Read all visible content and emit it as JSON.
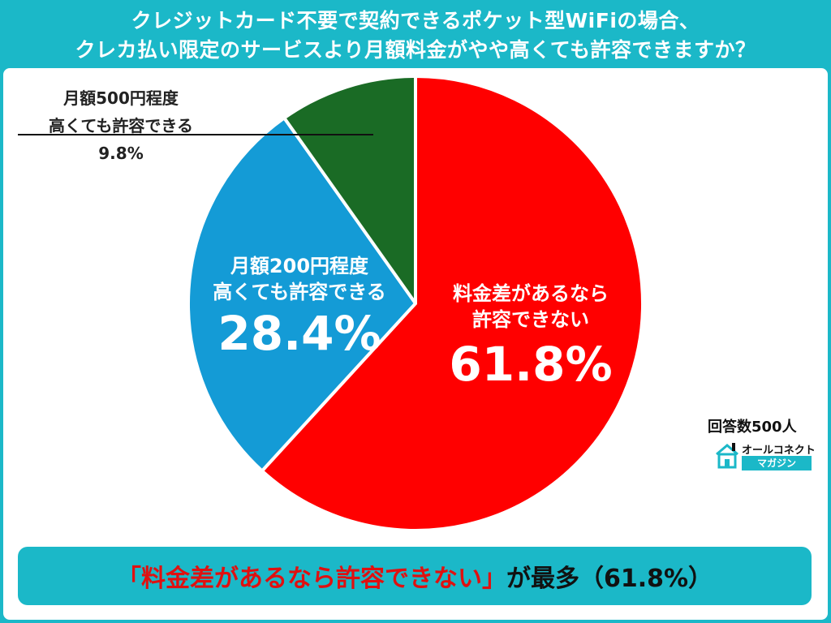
{
  "title": {
    "line1": "クレジットカード不要で契約できるポケット型WiFiの場合、",
    "line2": "クレカ払い限定のサービスより月額料金がやや高くても許容できますか？"
  },
  "chart_data": {
    "type": "pie",
    "start_angle_deg": 0,
    "direction": "clockwise",
    "slices": [
      {
        "label_line1": "料金差があるなら",
        "label_line2": "許容できない",
        "value": 61.8,
        "value_text": "61.8%",
        "color": "#ff0000"
      },
      {
        "label_line1": "月額200円程度",
        "label_line2": "高くても許容できる",
        "value": 28.4,
        "value_text": "28.4%",
        "color": "#149bd6"
      },
      {
        "label_line1": "月額500円程度",
        "label_line2": "高くても許容できる",
        "value": 9.8,
        "value_text": "9.8%",
        "color": "#1a6b25"
      }
    ]
  },
  "note": {
    "respondents": "回答数500人"
  },
  "logo": {
    "top": "オールコネクト",
    "bottom": "マガジン",
    "icon": "house-icon"
  },
  "summary": {
    "highlight": "「料金差があるなら許容できない」",
    "rest": "が最多（61.8%）"
  },
  "colors": {
    "background": "#1bb8c8",
    "panel": "#ffffff",
    "highlight": "#e01010"
  }
}
